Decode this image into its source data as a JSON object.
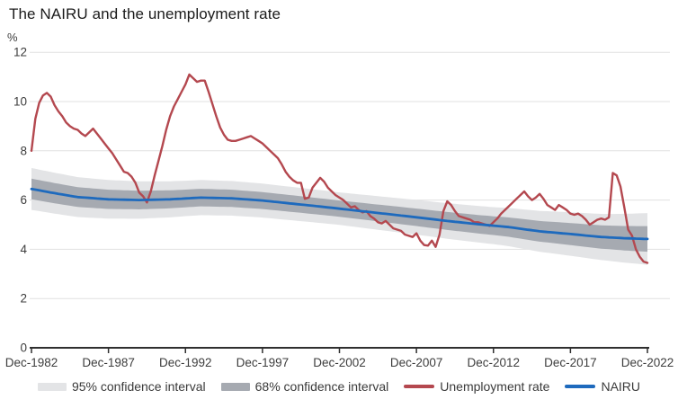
{
  "page_title": "The NAIRU and the unemployment rate",
  "colors": {
    "unemployment_line": "#b4484f",
    "nairu_line": "#1e6abd",
    "band_68": "#a6aab1",
    "band_95": "#e3e4e6",
    "gridline": "#e0e0e0",
    "axis": "#2f2f2f",
    "tick_text": "#3d3d3d",
    "title_text": "#1b1b1b"
  },
  "chart_data": {
    "type": "line",
    "title": "The NAIRU and the unemployment rate",
    "xlabel": "",
    "ylabel": "%",
    "ylim": [
      0,
      12
    ],
    "y_ticks": [
      0,
      2,
      4,
      6,
      8,
      10,
      12
    ],
    "x_tick_labels": [
      "Dec-1982",
      "Dec-1987",
      "Dec-1992",
      "Dec-1997",
      "Dec-2002",
      "Dec-2007",
      "Dec-2012",
      "Dec-2017",
      "Dec-2022"
    ],
    "x_range": [
      "Dec-1982",
      "Dec-2022"
    ],
    "frequency": "quarterly",
    "grid": "horizontal",
    "legend_position": "bottom",
    "legend": [
      "95% confidence interval",
      "68% confidence interval",
      "Unemployment rate",
      "NAIRU"
    ],
    "series": [
      {
        "name": "Unemployment rate",
        "type": "line",
        "color": "#b4484f",
        "values": [
          8.0,
          9.3,
          9.95,
          10.25,
          10.35,
          10.2,
          9.85,
          9.6,
          9.4,
          9.15,
          9.0,
          8.9,
          8.85,
          8.7,
          8.6,
          8.75,
          8.9,
          8.7,
          8.5,
          8.3,
          8.1,
          7.9,
          7.65,
          7.4,
          7.15,
          7.1,
          6.95,
          6.7,
          6.3,
          6.15,
          5.9,
          6.35,
          7.0,
          7.6,
          8.2,
          8.85,
          9.4,
          9.8,
          10.1,
          10.4,
          10.7,
          11.1,
          10.95,
          10.8,
          10.85,
          10.85,
          10.4,
          9.9,
          9.4,
          8.95,
          8.65,
          8.45,
          8.4,
          8.4,
          8.45,
          8.5,
          8.55,
          8.6,
          8.5,
          8.4,
          8.3,
          8.15,
          8.0,
          7.85,
          7.7,
          7.45,
          7.15,
          6.95,
          6.8,
          6.7,
          6.7,
          6.05,
          6.1,
          6.5,
          6.7,
          6.9,
          6.75,
          6.5,
          6.35,
          6.2,
          6.1,
          6.0,
          5.85,
          5.7,
          5.75,
          5.6,
          5.5,
          5.55,
          5.35,
          5.25,
          5.1,
          5.05,
          5.15,
          5.0,
          4.85,
          4.8,
          4.75,
          4.6,
          4.55,
          4.5,
          4.65,
          4.35,
          4.17,
          4.15,
          4.35,
          4.1,
          4.6,
          5.55,
          5.95,
          5.8,
          5.55,
          5.35,
          5.3,
          5.25,
          5.2,
          5.1,
          5.1,
          5.05,
          5.0,
          4.95,
          5.1,
          5.25,
          5.45,
          5.6,
          5.75,
          5.9,
          6.05,
          6.2,
          6.35,
          6.15,
          6.0,
          6.1,
          6.25,
          6.05,
          5.8,
          5.7,
          5.6,
          5.8,
          5.7,
          5.6,
          5.45,
          5.4,
          5.45,
          5.35,
          5.2,
          5.0,
          5.1,
          5.2,
          5.25,
          5.2,
          5.3,
          7.1,
          7.0,
          6.55,
          5.7,
          4.8,
          4.55,
          4.0,
          3.7,
          3.5,
          3.45
        ]
      },
      {
        "name": "NAIRU",
        "type": "line",
        "color": "#1e6abd",
        "knots": {
          "t": [
            0,
            6,
            12,
            20,
            28,
            36,
            44,
            52,
            60,
            68,
            76,
            84,
            92,
            100,
            108,
            116,
            124,
            132,
            140,
            148,
            154,
            160
          ],
          "v": [
            6.45,
            6.28,
            6.12,
            6.03,
            6.0,
            6.03,
            6.1,
            6.07,
            5.98,
            5.85,
            5.72,
            5.58,
            5.44,
            5.3,
            5.15,
            5.02,
            4.9,
            4.73,
            4.62,
            4.5,
            4.45,
            4.42
          ]
        }
      },
      {
        "name": "68% confidence interval",
        "type": "band_around_nairu",
        "color": "#a6aab1",
        "half_width_knots": {
          "t": [
            0,
            40,
            80,
            120,
            150,
            160
          ],
          "v": [
            0.42,
            0.36,
            0.33,
            0.38,
            0.48,
            0.52
          ]
        }
      },
      {
        "name": "95% confidence interval",
        "type": "band_around_nairu",
        "color": "#e3e4e6",
        "half_width_knots": {
          "t": [
            0,
            40,
            80,
            120,
            150,
            160
          ],
          "v": [
            0.85,
            0.72,
            0.66,
            0.75,
            0.95,
            1.05
          ]
        }
      }
    ]
  }
}
